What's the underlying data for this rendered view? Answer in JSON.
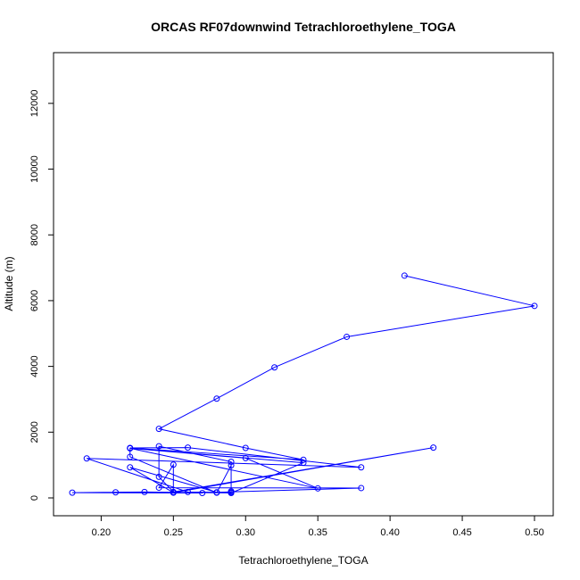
{
  "chart_data": {
    "type": "line",
    "title": "ORCAS RF07downwind Tetrachloroethylene_TOGA",
    "xlabel": "Tetrachloroethylene_TOGA",
    "ylabel": "Altitude (m)",
    "xlim": [
      0.18,
      0.5
    ],
    "ylim": [
      0,
      13000
    ],
    "x_ticks": [
      0.2,
      0.25,
      0.3,
      0.35,
      0.4,
      0.45,
      0.5
    ],
    "x_tick_labels": [
      "0.20",
      "0.25",
      "0.30",
      "0.35",
      "0.40",
      "0.45",
      "0.50"
    ],
    "y_ticks": [
      0,
      2000,
      4000,
      6000,
      8000,
      10000,
      12000
    ],
    "y_tick_labels": [
      "0",
      "2000",
      "4000",
      "6000",
      "8000",
      "10000",
      "12000"
    ],
    "grid": false,
    "legend": "none",
    "marker": "open-circle",
    "color": "#0000ff",
    "series": [
      {
        "points": [
          [
            0.41,
            6760
          ],
          [
            0.5,
            5840
          ],
          [
            0.37,
            4900
          ],
          [
            0.32,
            3970
          ],
          [
            0.28,
            3020
          ],
          [
            0.24,
            2100
          ],
          [
            0.3,
            1520
          ],
          [
            0.34,
            1160
          ],
          [
            0.22,
            1520
          ],
          [
            0.26,
            1530
          ],
          [
            0.38,
            930
          ],
          [
            0.19,
            1200
          ],
          [
            0.26,
            180
          ],
          [
            0.29,
            170
          ],
          [
            0.29,
            1100
          ],
          [
            0.24,
            1570
          ],
          [
            0.24,
            640
          ],
          [
            0.25,
            180
          ],
          [
            0.43,
            1530
          ],
          [
            0.25,
            160
          ],
          [
            0.22,
            930
          ],
          [
            0.28,
            170
          ],
          [
            0.38,
            300
          ],
          [
            0.24,
            310
          ],
          [
            0.25,
            1010
          ],
          [
            0.25,
            170
          ],
          [
            0.21,
            170
          ],
          [
            0.27,
            150
          ],
          [
            0.18,
            160
          ],
          [
            0.23,
            180
          ],
          [
            0.29,
            150
          ],
          [
            0.34,
            1070
          ],
          [
            0.22,
            1510
          ],
          [
            0.3,
            1210
          ],
          [
            0.35,
            290
          ],
          [
            0.22,
            1510
          ],
          [
            0.22,
            1250
          ],
          [
            0.28,
            160
          ],
          [
            0.29,
            990
          ],
          [
            0.29,
            200
          ]
        ]
      }
    ]
  }
}
